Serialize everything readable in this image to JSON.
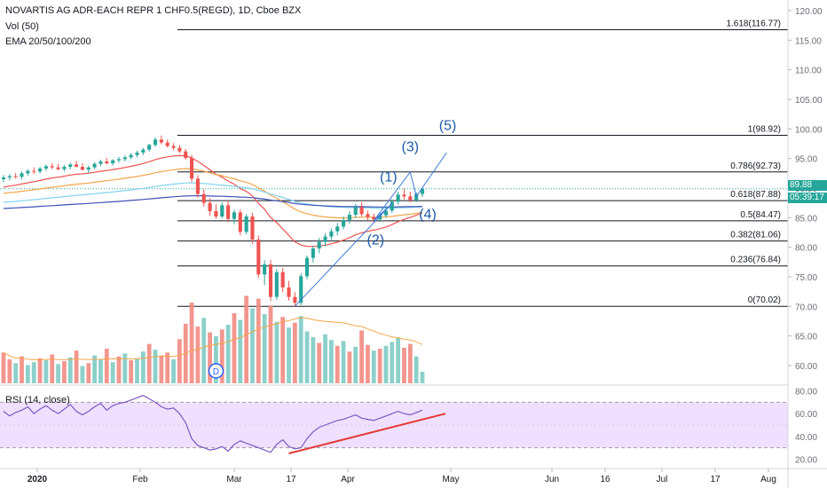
{
  "header": {
    "title": "NOVARTIS AG ADR-EACH REPR 1 CHF0.5(REGD), 1D, Cboe BZX",
    "volume_label": "Vol (50)",
    "ema_label": "EMA 20/50/100/200"
  },
  "price_badge": {
    "last_price": "89.88",
    "countdown": "05:39:17"
  },
  "rsi_label": "RSI (14, close)",
  "colors": {
    "up": "#26a69a",
    "down": "#ef5350",
    "vol_up": "#80cbc4",
    "vol_down": "#f28b82",
    "ema20": "#ef5350",
    "ema50": "#f5a54a",
    "ema100": "#7fd3f0",
    "ema200": "#3f51b5",
    "rsi": "#7e57c2",
    "rsi_band": "#f0e0ff",
    "wave": "#1e5aa8",
    "trend": "#e53935"
  },
  "chart_data": {
    "type": "candlestick",
    "price_axis": {
      "ticks": [
        "120.00",
        "115.00",
        "110.00",
        "105.00",
        "100.00",
        "95.00",
        "90.00",
        "85.00",
        "80.00",
        "75.00",
        "70.00",
        "65.00",
        "60.00"
      ],
      "range": [
        57,
        121.5
      ]
    },
    "rsi_axis": {
      "ticks": [
        "80.00",
        "60.00",
        "40.00",
        "20.00"
      ],
      "range": [
        18,
        82
      ],
      "band": [
        30,
        70
      ]
    },
    "x_axis": {
      "labels": [
        "2020",
        "Feb",
        "Mar",
        "17",
        "Apr",
        "May",
        "Jun",
        "16",
        "Jul",
        "17",
        "Aug"
      ]
    },
    "fibonacci": [
      {
        "ratio": "1.618",
        "price": 116.77,
        "label": "1.618(116.77)"
      },
      {
        "ratio": "1",
        "price": 98.92,
        "label": "1(98.92)"
      },
      {
        "ratio": "0.786",
        "price": 92.73,
        "label": "0.786(92.73)"
      },
      {
        "ratio": "0.618",
        "price": 87.88,
        "label": "0.618(87.88)"
      },
      {
        "ratio": "0.5",
        "price": 84.47,
        "label": "0.5(84.47)"
      },
      {
        "ratio": "0.382",
        "price": 81.06,
        "label": "0.382(81.06)"
      },
      {
        "ratio": "0.236",
        "price": 76.84,
        "label": "0.236(76.84)"
      },
      {
        "ratio": "0",
        "price": 70.02,
        "label": "0(70.02)"
      }
    ],
    "last_price": 89.88,
    "wave_labels": [
      "(1)",
      "(2)",
      "(3)",
      "(4)",
      "(5)"
    ],
    "dividend_marker": "D",
    "candles": [
      [
        91.5,
        92.2,
        91.0,
        91.8
      ],
      [
        91.8,
        92.4,
        91.3,
        92.0
      ],
      [
        92.0,
        92.6,
        91.6,
        91.9
      ],
      [
        91.9,
        92.8,
        91.5,
        92.5
      ],
      [
        92.5,
        93.2,
        92.1,
        92.9
      ],
      [
        92.9,
        93.5,
        92.4,
        92.8
      ],
      [
        92.8,
        93.6,
        92.5,
        93.3
      ],
      [
        93.3,
        94.0,
        92.9,
        93.7
      ],
      [
        93.7,
        94.2,
        93.2,
        93.5
      ],
      [
        93.5,
        94.1,
        93.0,
        93.2
      ],
      [
        93.2,
        93.9,
        92.8,
        93.6
      ],
      [
        93.6,
        94.3,
        93.2,
        94.0
      ],
      [
        94.0,
        94.6,
        93.5,
        93.6
      ],
      [
        93.6,
        94.2,
        93.0,
        93.1
      ],
      [
        93.1,
        93.8,
        92.6,
        93.5
      ],
      [
        93.5,
        94.4,
        93.2,
        94.1
      ],
      [
        94.1,
        94.8,
        93.7,
        94.5
      ],
      [
        94.5,
        95.1,
        94.0,
        94.2
      ],
      [
        94.2,
        94.9,
        93.8,
        94.7
      ],
      [
        94.7,
        95.3,
        94.3,
        94.9
      ],
      [
        94.9,
        95.5,
        94.5,
        95.2
      ],
      [
        95.2,
        95.9,
        94.9,
        95.6
      ],
      [
        95.6,
        96.3,
        95.2,
        96.0
      ],
      [
        96.0,
        96.8,
        95.6,
        96.5
      ],
      [
        96.5,
        97.5,
        96.2,
        97.3
      ],
      [
        97.3,
        98.6,
        97.0,
        98.2
      ],
      [
        98.2,
        98.9,
        97.4,
        97.7
      ],
      [
        97.7,
        98.2,
        96.9,
        97.1
      ],
      [
        97.1,
        97.6,
        96.4,
        96.8
      ],
      [
        96.8,
        97.3,
        95.9,
        96.2
      ],
      [
        96.2,
        96.6,
        94.8,
        95.1
      ],
      [
        95.1,
        95.6,
        91.0,
        91.6
      ],
      [
        91.6,
        92.2,
        88.4,
        89.0
      ],
      [
        89.0,
        89.8,
        86.9,
        87.5
      ],
      [
        87.5,
        88.3,
        85.3,
        86.1
      ],
      [
        86.1,
        87.3,
        84.8,
        85.2
      ],
      [
        85.2,
        87.6,
        84.9,
        87.1
      ],
      [
        87.1,
        87.9,
        84.2,
        84.8
      ],
      [
        84.8,
        86.3,
        83.9,
        85.9
      ],
      [
        85.9,
        86.4,
        82.0,
        82.6
      ],
      [
        82.6,
        85.6,
        82.2,
        85.2
      ],
      [
        85.2,
        85.8,
        80.6,
        81.3
      ],
      [
        81.3,
        82.0,
        74.8,
        75.4
      ],
      [
        75.4,
        77.8,
        73.6,
        77.1
      ],
      [
        77.1,
        77.9,
        70.9,
        71.6
      ],
      [
        71.6,
        76.3,
        71.1,
        75.8
      ],
      [
        75.8,
        76.5,
        72.4,
        73.2
      ],
      [
        73.2,
        74.3,
        71.0,
        71.6
      ],
      [
        71.6,
        72.4,
        70.0,
        70.6
      ],
      [
        70.6,
        75.6,
        70.2,
        75.1
      ],
      [
        75.1,
        78.6,
        74.6,
        78.2
      ],
      [
        78.2,
        80.3,
        77.4,
        79.8
      ],
      [
        79.8,
        81.6,
        79.0,
        80.9
      ],
      [
        80.9,
        82.4,
        80.1,
        81.8
      ],
      [
        81.8,
        83.2,
        81.2,
        82.7
      ],
      [
        82.7,
        84.1,
        82.0,
        83.5
      ],
      [
        83.5,
        85.2,
        83.0,
        84.6
      ],
      [
        84.6,
        86.1,
        84.0,
        85.5
      ],
      [
        85.5,
        87.3,
        85.0,
        86.8
      ],
      [
        86.8,
        87.6,
        85.2,
        85.6
      ],
      [
        85.6,
        86.2,
        84.6,
        85.1
      ],
      [
        85.1,
        85.7,
        84.1,
        84.7
      ],
      [
        84.7,
        85.9,
        84.3,
        85.4
      ],
      [
        85.4,
        86.6,
        85.0,
        86.2
      ],
      [
        86.2,
        88.1,
        85.8,
        87.7
      ],
      [
        87.7,
        89.4,
        87.2,
        88.9
      ],
      [
        88.9,
        89.9,
        88.1,
        88.6
      ],
      [
        88.6,
        89.4,
        87.6,
        88.0
      ],
      [
        88.0,
        89.3,
        87.6,
        89.0
      ],
      [
        89.0,
        90.1,
        88.5,
        89.88
      ]
    ],
    "volume": [
      [
        0,
        3.2
      ],
      [
        0,
        2.5
      ],
      [
        1,
        2.1
      ],
      [
        0,
        2.8
      ],
      [
        1,
        1.9
      ],
      [
        1,
        2.2
      ],
      [
        0,
        2.6
      ],
      [
        1,
        2.4
      ],
      [
        0,
        3.0
      ],
      [
        1,
        2.0
      ],
      [
        0,
        2.3
      ],
      [
        1,
        2.7
      ],
      [
        0,
        3.4
      ],
      [
        1,
        1.8
      ],
      [
        0,
        2.1
      ],
      [
        1,
        2.9
      ],
      [
        1,
        2.5
      ],
      [
        0,
        3.6
      ],
      [
        1,
        2.2
      ],
      [
        0,
        2.8
      ],
      [
        1,
        3.1
      ],
      [
        0,
        2.4
      ],
      [
        1,
        2.6
      ],
      [
        1,
        3.3
      ],
      [
        0,
        4.1
      ],
      [
        1,
        3.5
      ],
      [
        0,
        2.9
      ],
      [
        0,
        3.2
      ],
      [
        1,
        2.5
      ],
      [
        0,
        4.6
      ],
      [
        0,
        6.2
      ],
      [
        0,
        8.4
      ],
      [
        0,
        5.9
      ],
      [
        1,
        6.8
      ],
      [
        0,
        5.3
      ],
      [
        1,
        4.9
      ],
      [
        0,
        5.6
      ],
      [
        1,
        6.1
      ],
      [
        0,
        7.3
      ],
      [
        1,
        6.6
      ],
      [
        0,
        9.1
      ],
      [
        1,
        7.8
      ],
      [
        0,
        8.8
      ],
      [
        1,
        7.2
      ],
      [
        0,
        8.1
      ],
      [
        1,
        6.4
      ],
      [
        0,
        6.9
      ],
      [
        1,
        5.8
      ],
      [
        0,
        6.3
      ],
      [
        1,
        7.0
      ],
      [
        1,
        5.4
      ],
      [
        1,
        4.8
      ],
      [
        0,
        4.2
      ],
      [
        1,
        5.1
      ],
      [
        1,
        4.5
      ],
      [
        0,
        3.9
      ],
      [
        1,
        4.4
      ],
      [
        0,
        3.3
      ],
      [
        1,
        3.8
      ],
      [
        0,
        5.5
      ],
      [
        0,
        4.0
      ],
      [
        1,
        3.4
      ],
      [
        0,
        3.6
      ],
      [
        1,
        3.9
      ],
      [
        1,
        4.3
      ],
      [
        1,
        4.7
      ],
      [
        0,
        3.7
      ],
      [
        0,
        4.1
      ],
      [
        1,
        2.8
      ],
      [
        1,
        1.2
      ]
    ],
    "rsi": [
      62,
      58,
      61,
      63,
      66,
      60,
      64,
      67,
      63,
      60,
      64,
      68,
      62,
      59,
      62,
      66,
      69,
      63,
      67,
      69,
      70,
      72,
      74,
      76,
      73,
      70,
      66,
      64,
      65,
      60,
      52,
      38,
      32,
      30,
      28,
      29,
      31,
      27,
      33,
      36,
      34,
      32,
      30,
      28,
      26,
      33,
      37,
      31,
      29,
      30,
      38,
      44,
      48,
      50,
      52,
      54,
      55,
      57,
      59,
      56,
      55,
      54,
      56,
      58,
      60,
      62,
      60,
      59,
      61,
      63
    ]
  }
}
